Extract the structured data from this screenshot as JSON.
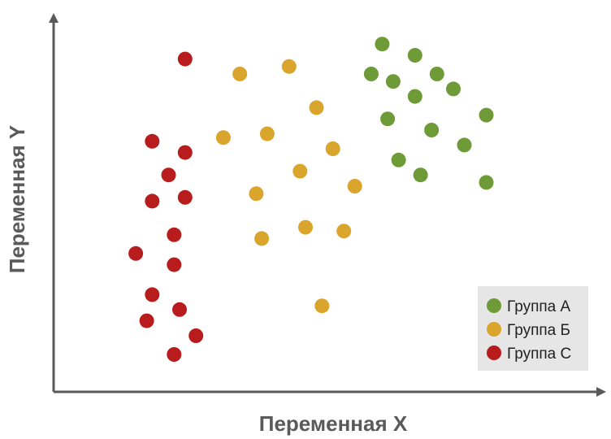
{
  "chart_data": {
    "type": "scatter",
    "xlabel": "Переменная X",
    "ylabel": "Переменная Y",
    "grid": false,
    "legend_position": "bottom-right",
    "xlim": [
      0,
      100
    ],
    "ylim": [
      0,
      100
    ],
    "series": [
      {
        "name": "Группа А",
        "color": "#6e9a38",
        "points": [
          [
            60,
            93
          ],
          [
            66,
            90
          ],
          [
            58,
            85
          ],
          [
            62,
            83
          ],
          [
            70,
            85
          ],
          [
            66,
            79
          ],
          [
            73,
            81
          ],
          [
            61,
            73
          ],
          [
            69,
            70
          ],
          [
            79,
            74
          ],
          [
            75,
            66
          ],
          [
            63,
            62
          ],
          [
            67,
            58
          ],
          [
            79,
            56
          ]
        ]
      },
      {
        "name": "Группа Б",
        "color": "#d9a52c",
        "points": [
          [
            34,
            85
          ],
          [
            43,
            87
          ],
          [
            48,
            76
          ],
          [
            31,
            68
          ],
          [
            39,
            69
          ],
          [
            51,
            65
          ],
          [
            45,
            59
          ],
          [
            55,
            55
          ],
          [
            37,
            53
          ],
          [
            38,
            41
          ],
          [
            46,
            44
          ],
          [
            53,
            43
          ],
          [
            49,
            23
          ]
        ]
      },
      {
        "name": "Группа С",
        "color": "#b81c1c",
        "points": [
          [
            24,
            89
          ],
          [
            18,
            67
          ],
          [
            24,
            64
          ],
          [
            21,
            58
          ],
          [
            18,
            51
          ],
          [
            24,
            52
          ],
          [
            22,
            42
          ],
          [
            15,
            37
          ],
          [
            22,
            34
          ],
          [
            18,
            26
          ],
          [
            23,
            22
          ],
          [
            17,
            19
          ],
          [
            26,
            15
          ],
          [
            22,
            10
          ]
        ]
      }
    ]
  }
}
